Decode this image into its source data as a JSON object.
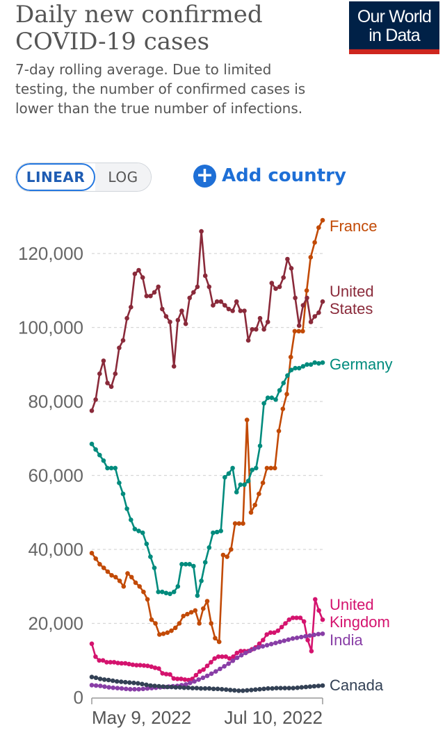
{
  "header": {
    "title_line1": "Daily new confirmed",
    "title_line2": "COVID-19 cases",
    "subtitle": "7-day rolling average. Due to limited testing, the number of confirmed cases is lower than the true number of infections."
  },
  "logo": {
    "line1": "Our World",
    "line2": "in Data"
  },
  "controls": {
    "scale_options": [
      "LINEAR",
      "LOG"
    ],
    "selected_scale": "LINEAR",
    "add_country_label": "Add country"
  },
  "colors": {
    "France": "#c24a06",
    "United States": "#8a2a3a",
    "Germany": "#008b7d",
    "United Kingdom": "#d4136e",
    "India": "#883ea6",
    "Canada": "#334155"
  },
  "chart_data": {
    "type": "line",
    "ylim": [
      0,
      125000
    ],
    "yticks": [
      0,
      20000,
      40000,
      60000,
      80000,
      100000,
      120000
    ],
    "ytick_labels": [
      "0",
      "20,000",
      "40,000",
      "60,000",
      "80,000",
      "100,000",
      "120,000"
    ],
    "xlim": [
      "2022-05-09",
      "2022-07-10"
    ],
    "xtick_labels": [
      "May 9, 2022",
      "Jul 10, 2022"
    ],
    "grid": "horizontal dashed",
    "series": [
      {
        "name": "France",
        "label_lines": [
          "France"
        ],
        "values": [
          39000,
          37500,
          36000,
          35000,
          34000,
          33000,
          32500,
          31500,
          30000,
          33500,
          32500,
          31000,
          30000,
          28500,
          26500,
          21000,
          20000,
          17000,
          17200,
          17500,
          18000,
          18800,
          20000,
          22000,
          22500,
          23000,
          23500,
          20000,
          24000,
          26000,
          20000,
          16000,
          15000,
          38500,
          38000,
          40000,
          47000,
          47000,
          47000,
          75000,
          50000,
          52000,
          55000,
          58000,
          62000,
          62000,
          62000,
          72000,
          78000,
          82000,
          92000,
          99000,
          99000,
          99000,
          110000,
          119000,
          123000,
          127000,
          129000
        ]
      },
      {
        "name": "United States",
        "label_lines": [
          "United",
          "States"
        ],
        "values": [
          77500,
          80500,
          87500,
          91000,
          85000,
          84000,
          87500,
          94500,
          96500,
          102500,
          105500,
          114500,
          115500,
          113500,
          108500,
          108500,
          109500,
          111000,
          105000,
          103000,
          101500,
          89500,
          102000,
          104500,
          101000,
          108000,
          109500,
          111000,
          126000,
          114000,
          111000,
          106000,
          107000,
          107000,
          106000,
          105000,
          104500,
          107000,
          104500,
          104500,
          96500,
          99500,
          99500,
          102500,
          99500,
          101500,
          112000,
          110500,
          111000,
          113500,
          118500,
          116000,
          108000,
          100500,
          106000,
          108000,
          101500,
          103000,
          104000,
          107000
        ]
      },
      {
        "name": "Germany",
        "label_lines": [
          "Germany"
        ],
        "values": [
          68500,
          67000,
          65500,
          64000,
          62000,
          62000,
          62000,
          58000,
          55000,
          51000,
          48000,
          45500,
          45000,
          44500,
          41500,
          38000,
          35000,
          28500,
          28500,
          28200,
          28000,
          28500,
          30000,
          36000,
          36000,
          36000,
          35500,
          27500,
          31500,
          36500,
          40500,
          44500,
          44700,
          45000,
          59500,
          60500,
          62000,
          55500,
          57500,
          57500,
          58500,
          61500,
          62000,
          68000,
          79500,
          81000,
          81000,
          80500,
          83000,
          85000,
          87000,
          88500,
          89000,
          89000,
          89500,
          90000,
          90000,
          90500,
          90300,
          90500
        ]
      },
      {
        "name": "United Kingdom",
        "label_lines": [
          "United",
          "Kingdom"
        ],
        "values": [
          14500,
          11000,
          10000,
          10000,
          9500,
          9500,
          9500,
          9300,
          9200,
          9200,
          9000,
          8800,
          8700,
          8700,
          8600,
          8500,
          8300,
          8000,
          7800,
          6500,
          6300,
          6200,
          5100,
          5000,
          5000,
          4800,
          4700,
          5000,
          6000,
          7000,
          7500,
          8500,
          9500,
          10500,
          11000,
          11000,
          11000,
          10500,
          11000,
          12000,
          12500,
          12500,
          12500,
          13000,
          13500,
          14500,
          15500,
          17000,
          17500,
          17500,
          18000,
          19000,
          20000,
          21000,
          21500,
          21500,
          21500,
          20500,
          15500,
          12500,
          26500,
          23500,
          21000
        ]
      },
      {
        "name": "India",
        "label_lines": [
          "India"
        ],
        "values": [
          3300,
          3200,
          3100,
          2900,
          2700,
          2600,
          2500,
          2400,
          2300,
          2200,
          2200,
          2200,
          2300,
          2400,
          2500,
          2600,
          2700,
          2800,
          2900,
          3000,
          3100,
          3300,
          3500,
          3900,
          4300,
          4800,
          5300,
          5800,
          6400,
          7000,
          7700,
          8400,
          9100,
          9900,
          10700,
          11400,
          12000,
          12600,
          13100,
          13500,
          13800,
          14100,
          14400,
          14700,
          15000,
          15300,
          15600,
          15900,
          16100,
          16300,
          16500,
          16700,
          16900,
          17100,
          17200
        ]
      },
      {
        "name": "Canada",
        "label_lines": [
          "Canada"
        ],
        "values": [
          5500,
          5300,
          5000,
          4800,
          4700,
          4500,
          4300,
          4200,
          4100,
          4000,
          3900,
          3800,
          3600,
          3400,
          3200,
          3100,
          3000,
          2900,
          2800,
          2800,
          2700,
          2700,
          2600,
          2600,
          2500,
          2500,
          2400,
          2400,
          2400,
          2300,
          2300,
          2200,
          2100,
          2000,
          1900,
          1800,
          1800,
          1900,
          2000,
          2100,
          2200,
          2300,
          2400,
          2400,
          2500,
          2500,
          2500,
          2500,
          2500,
          2600,
          2700,
          2800,
          2900,
          3000,
          3100,
          3200
        ]
      }
    ]
  }
}
